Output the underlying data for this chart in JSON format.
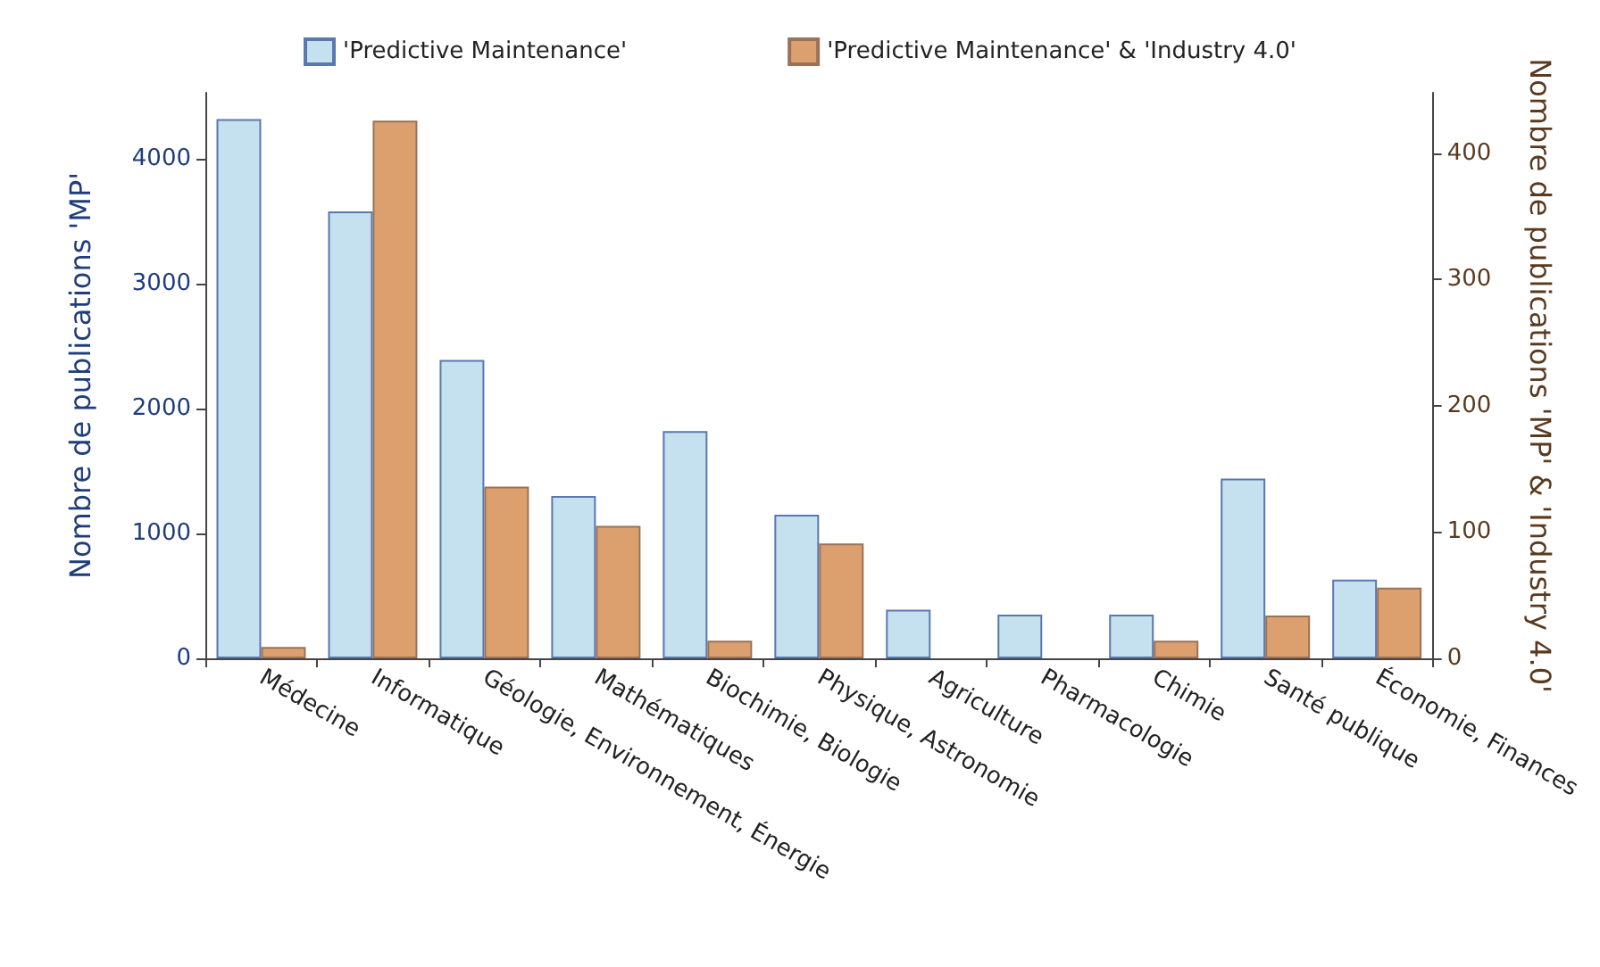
{
  "chart_data": {
    "type": "bar",
    "ylabel": "Nombre de publications 'MP'",
    "y2label": "Nombre de publications 'MP' & 'Industry 4.0'",
    "categories": [
      "Médecine",
      "Informatique",
      "Géologie, Environnement, Énergie",
      "Mathématiques",
      "Biochimie, Biologie",
      "Physique, Astronomie",
      "Agriculture",
      "Pharmacologie",
      "Chimie",
      "Santé publique",
      "Économie, Finances"
    ],
    "series": [
      {
        "name": "'Predictive Maintenance'",
        "color": "#c5e0ee",
        "values": [
          4320,
          3580,
          2390,
          1300,
          1820,
          1150,
          390,
          350,
          350,
          1440,
          630
        ]
      },
      {
        "name": "'Predictive Maintenance' & 'Industry 4.0'",
        "color": "#dba06e",
        "axis": "y2",
        "values": [
          9,
          426,
          136,
          105,
          14,
          91,
          null,
          null,
          14,
          34,
          56
        ]
      }
    ],
    "ylim": [
      0,
      4530
    ],
    "yticks": [
      0,
      1000,
      2000,
      3000,
      4000
    ],
    "y2lim": [
      0,
      448
    ],
    "y2ticks": [
      0,
      100,
      200,
      300,
      400
    ],
    "grid": false,
    "legend": "top"
  }
}
